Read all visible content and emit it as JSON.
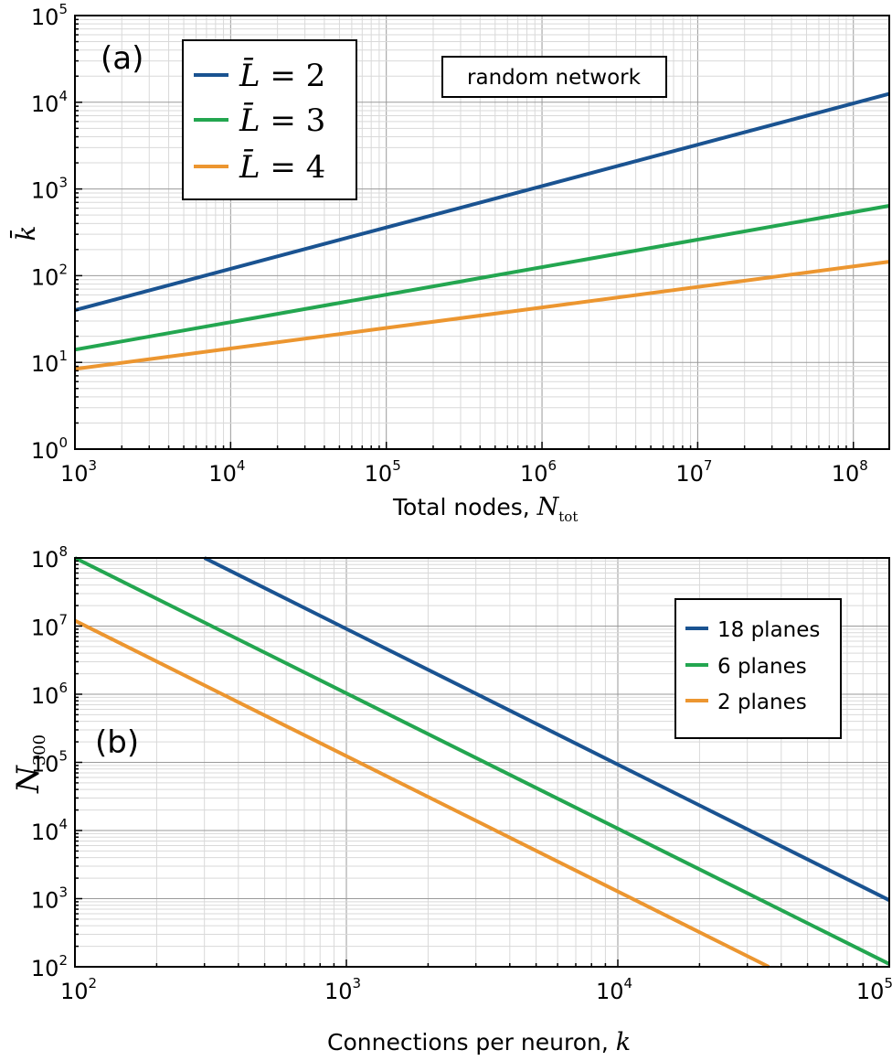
{
  "figure": {
    "panel_a": {
      "panel_label": "(a)",
      "annotation": "random network"
    },
    "panel_b": {
      "panel_label": "(b)"
    }
  },
  "colors": {
    "blue": "#1a5391",
    "green": "#23a650",
    "orange": "#ec9630"
  },
  "chart_data": [
    {
      "type": "line",
      "x_scale": "log",
      "y_scale": "log",
      "xlim": [
        1000,
        170000000
      ],
      "ylim": [
        1,
        100000
      ],
      "grid": true,
      "legend_position": "top-left",
      "xlabel": "Total nodes, N_tot",
      "xlabel_text": "Total nodes, ",
      "xlabel_symbol": "N",
      "xlabel_subscript": "tot",
      "ylabel": "k̄",
      "x_ticks": [
        {
          "value": 1000,
          "base": "10",
          "exp": "3"
        },
        {
          "value": 10000,
          "base": "10",
          "exp": "4"
        },
        {
          "value": 100000,
          "base": "10",
          "exp": "5"
        },
        {
          "value": 1000000,
          "base": "10",
          "exp": "6"
        },
        {
          "value": 10000000,
          "base": "10",
          "exp": "7"
        },
        {
          "value": 100000000,
          "base": "10",
          "exp": "8"
        }
      ],
      "y_ticks": [
        {
          "value": 1,
          "base": "10",
          "exp": "0"
        },
        {
          "value": 10,
          "base": "10",
          "exp": "1"
        },
        {
          "value": 100,
          "base": "10",
          "exp": "2"
        },
        {
          "value": 1000,
          "base": "10",
          "exp": "3"
        },
        {
          "value": 10000,
          "base": "10",
          "exp": "4"
        },
        {
          "value": 100000,
          "base": "10",
          "exp": "5"
        }
      ],
      "series": [
        {
          "name": "L̄ = 2",
          "name_symbol": "L̄",
          "name_rest": " = 2",
          "color": "#1a5391",
          "x": [
            1000,
            170000000
          ],
          "y": [
            40,
            12500
          ]
        },
        {
          "name": "L̄ = 3",
          "name_symbol": "L̄",
          "name_rest": " = 3",
          "color": "#23a650",
          "x": [
            1000,
            170000000
          ],
          "y": [
            14,
            640
          ]
        },
        {
          "name": "L̄ = 4",
          "name_symbol": "L̄",
          "name_rest": " = 4",
          "color": "#ec9630",
          "x": [
            1000,
            170000000
          ],
          "y": [
            8.4,
            145
          ]
        }
      ]
    },
    {
      "type": "line",
      "x_scale": "log",
      "y_scale": "log",
      "xlim": [
        100,
        100000
      ],
      "ylim": [
        100,
        100000000
      ],
      "grid": true,
      "legend_position": "upper-right",
      "xlabel": "Connections per neuron, k",
      "xlabel_text": "Connections per neuron, ",
      "xlabel_symbol": "k",
      "ylabel": "N_300",
      "ylabel_symbol": "N",
      "ylabel_subscript": "300",
      "x_ticks": [
        {
          "value": 100,
          "base": "10",
          "exp": "2"
        },
        {
          "value": 1000,
          "base": "10",
          "exp": "3"
        },
        {
          "value": 10000,
          "base": "10",
          "exp": "4"
        },
        {
          "value": 100000,
          "base": "10",
          "exp": "5"
        }
      ],
      "y_ticks": [
        {
          "value": 100,
          "base": "10",
          "exp": "2"
        },
        {
          "value": 1000,
          "base": "10",
          "exp": "3"
        },
        {
          "value": 10000,
          "base": "10",
          "exp": "4"
        },
        {
          "value": 100000,
          "base": "10",
          "exp": "5"
        },
        {
          "value": 1000000,
          "base": "10",
          "exp": "6"
        },
        {
          "value": 10000000,
          "base": "10",
          "exp": "7"
        },
        {
          "value": 100000000,
          "base": "10",
          "exp": "8"
        }
      ],
      "series": [
        {
          "name": "18 planes",
          "color": "#1a5391",
          "x": [
            300,
            100000
          ],
          "y": [
            100000000,
            950
          ]
        },
        {
          "name": "6 planes",
          "color": "#23a650",
          "x": [
            100,
            100000
          ],
          "y": [
            100000000,
            110
          ]
        },
        {
          "name": "2 planes",
          "color": "#ec9630",
          "x": [
            100,
            36000
          ],
          "y": [
            12000000,
            100
          ]
        }
      ]
    }
  ]
}
